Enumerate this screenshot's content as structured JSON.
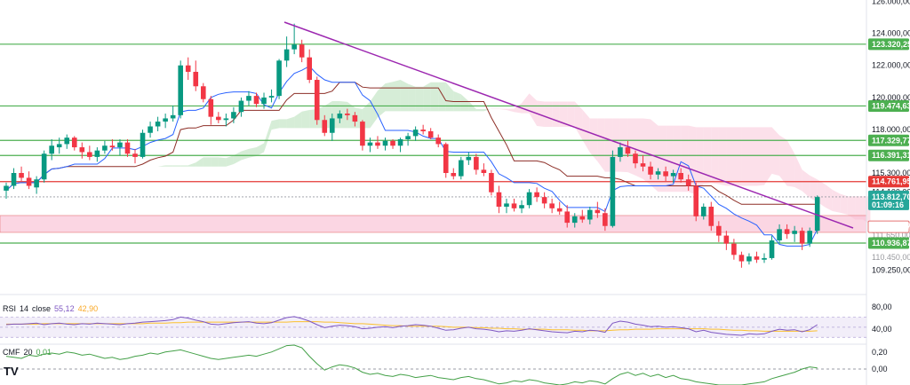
{
  "chart_data": {
    "type": "candlestick",
    "price_axis": {
      "ticks": [
        "126.000,00",
        "124.000,00",
        "122.000,00",
        "120.000,00",
        "118.000,00",
        "115.300,00",
        "114.100,00",
        "109.250,00"
      ],
      "tick_values": [
        126000,
        124000,
        122000,
        120000,
        118000,
        115300,
        114100,
        109250
      ]
    },
    "horizontal_levels": [
      {
        "label": "123.320,25",
        "value": 123320.25,
        "color": "#4caf50"
      },
      {
        "label": "119.474,63",
        "value": 119474.63,
        "color": "#4caf50"
      },
      {
        "label": "117.329,77",
        "value": 117329.77,
        "color": "#4caf50"
      },
      {
        "label": "116.391,31",
        "value": 116391.31,
        "color": "#4caf50"
      },
      {
        "label": "114.761,95",
        "value": 114761.95,
        "color": "#e53935"
      },
      {
        "label": "110.936,87",
        "value": 110936.87,
        "color": "#4caf50"
      }
    ],
    "resistance_zone": {
      "low": 111600,
      "high": 112650
    },
    "current_price": {
      "label": "113.812,70",
      "value": 113812.7,
      "countdown": "01:09:16",
      "color": "#26a69a"
    },
    "zone_tag": {
      "label": "111.949,37",
      "value": 111949.37
    },
    "hidden_tick_labels": [
      "111.650,00",
      "110.450,00"
    ],
    "trendline": {
      "start": [
        0,
        124700
      ],
      "end": [
        107,
        111950
      ],
      "color": "#9c27b0"
    },
    "candles": [
      [
        0,
        114200,
        114700,
        113700,
        114500
      ],
      [
        1,
        114500,
        115600,
        114300,
        115300
      ],
      [
        2,
        115300,
        115700,
        114800,
        115000
      ],
      [
        3,
        115000,
        115400,
        114300,
        114500
      ],
      [
        4,
        114400,
        115100,
        114000,
        114900
      ],
      [
        5,
        114900,
        116700,
        114700,
        116500
      ],
      [
        6,
        116500,
        117400,
        116100,
        117000
      ],
      [
        7,
        116900,
        117500,
        116500,
        117100
      ],
      [
        8,
        117100,
        117700,
        116800,
        117500
      ],
      [
        9,
        117500,
        117600,
        116700,
        116900
      ],
      [
        10,
        116900,
        117200,
        116200,
        116600
      ],
      [
        11,
        116600,
        117000,
        116100,
        116300
      ],
      [
        12,
        116300,
        116900,
        116000,
        116700
      ],
      [
        13,
        116700,
        117300,
        116500,
        117000
      ],
      [
        14,
        117000,
        117400,
        116700,
        116900
      ],
      [
        15,
        116900,
        117400,
        116400,
        117200
      ],
      [
        16,
        117200,
        117400,
        116300,
        116500
      ],
      [
        17,
        116500,
        116800,
        115900,
        116300
      ],
      [
        18,
        116300,
        118000,
        116200,
        117800
      ],
      [
        19,
        117800,
        118500,
        117500,
        118200
      ],
      [
        20,
        118200,
        118800,
        117900,
        118500
      ],
      [
        21,
        118500,
        119000,
        118100,
        118700
      ],
      [
        22,
        118700,
        119500,
        118500,
        118900
      ],
      [
        23,
        118900,
        122300,
        118700,
        122000
      ],
      [
        24,
        122000,
        122500,
        121100,
        121600
      ],
      [
        25,
        121600,
        122300,
        120400,
        120700
      ],
      [
        26,
        120700,
        120900,
        119700,
        119900
      ],
      [
        27,
        119900,
        120100,
        118300,
        118800
      ],
      [
        28,
        118800,
        119100,
        118400,
        118600
      ],
      [
        29,
        118600,
        119000,
        118200,
        118700
      ],
      [
        30,
        118700,
        119400,
        118400,
        119100
      ],
      [
        31,
        119100,
        120000,
        118800,
        119800
      ],
      [
        32,
        119800,
        120400,
        119500,
        120100
      ],
      [
        33,
        120100,
        120300,
        119400,
        119600
      ],
      [
        34,
        119600,
        120300,
        119300,
        120000
      ],
      [
        35,
        120000,
        120500,
        119700,
        120100
      ],
      [
        36,
        120100,
        122400,
        119900,
        122300
      ],
      [
        37,
        122300,
        123800,
        121900,
        123000
      ],
      [
        38,
        123000,
        124600,
        122700,
        123300
      ],
      [
        39,
        123300,
        123600,
        122200,
        122500
      ],
      [
        40,
        122500,
        123000,
        120900,
        121100
      ],
      [
        41,
        121100,
        121300,
        118300,
        118600
      ],
      [
        42,
        118600,
        118900,
        117600,
        117800
      ],
      [
        43,
        117800,
        119000,
        117300,
        118700
      ],
      [
        44,
        118700,
        119200,
        118400,
        119000
      ],
      [
        45,
        119000,
        119300,
        118600,
        118900
      ],
      [
        46,
        118900,
        119100,
        118200,
        118500
      ],
      [
        47,
        118500,
        118600,
        116700,
        117000
      ],
      [
        48,
        117000,
        117500,
        116600,
        117200
      ],
      [
        49,
        117200,
        117600,
        116800,
        117000
      ],
      [
        50,
        117000,
        117500,
        116700,
        117300
      ],
      [
        51,
        117300,
        117400,
        116800,
        117000
      ],
      [
        52,
        117000,
        117500,
        116600,
        117400
      ],
      [
        53,
        117400,
        117800,
        117000,
        117600
      ],
      [
        54,
        117600,
        118200,
        117300,
        118000
      ],
      [
        55,
        118000,
        118300,
        117700,
        117900
      ],
      [
        56,
        117900,
        118100,
        117400,
        117500
      ],
      [
        57,
        117500,
        117700,
        116900,
        117100
      ],
      [
        58,
        117100,
        117200,
        115000,
        115300
      ],
      [
        59,
        115300,
        115600,
        114900,
        115100
      ],
      [
        60,
        115100,
        116300,
        114900,
        116100
      ],
      [
        61,
        116100,
        116600,
        115800,
        116300
      ],
      [
        62,
        116300,
        116500,
        115200,
        115500
      ],
      [
        63,
        115500,
        115900,
        115100,
        115300
      ],
      [
        64,
        115300,
        115500,
        113900,
        114100
      ],
      [
        65,
        114100,
        114500,
        112800,
        113200
      ],
      [
        66,
        113200,
        113700,
        112800,
        113400
      ],
      [
        67,
        113400,
        113700,
        112900,
        113100
      ],
      [
        68,
        113100,
        113600,
        112800,
        113300
      ],
      [
        69,
        113300,
        114300,
        113100,
        114100
      ],
      [
        70,
        114100,
        114400,
        113500,
        113800
      ],
      [
        71,
        113800,
        114100,
        113100,
        113400
      ],
      [
        72,
        113400,
        113700,
        112800,
        113100
      ],
      [
        73,
        113100,
        113500,
        112700,
        112900
      ],
      [
        74,
        112900,
        113300,
        111900,
        112200
      ],
      [
        75,
        112200,
        112800,
        111900,
        112600
      ],
      [
        76,
        112600,
        113000,
        112200,
        112400
      ],
      [
        77,
        112400,
        113200,
        112100,
        113000
      ],
      [
        78,
        113000,
        113500,
        112500,
        112800
      ],
      [
        79,
        112800,
        113100,
        111700,
        112000
      ],
      [
        80,
        112000,
        116700,
        111900,
        116300
      ],
      [
        81,
        116300,
        117200,
        116000,
        116900
      ],
      [
        82,
        116900,
        117300,
        116300,
        116500
      ],
      [
        83,
        116500,
        116700,
        115600,
        115900
      ],
      [
        84,
        115900,
        116400,
        115400,
        115700
      ],
      [
        85,
        115700,
        116000,
        114900,
        115200
      ],
      [
        86,
        115200,
        115600,
        114900,
        115400
      ],
      [
        87,
        115400,
        115700,
        114800,
        115100
      ],
      [
        88,
        115100,
        115500,
        114700,
        115300
      ],
      [
        89,
        115300,
        115600,
        114700,
        114900
      ],
      [
        90,
        114900,
        115200,
        114200,
        114500
      ],
      [
        91,
        114500,
        114700,
        112300,
        112600
      ],
      [
        92,
        112600,
        113400,
        112400,
        113200
      ],
      [
        93,
        113200,
        113500,
        111700,
        112000
      ],
      [
        94,
        112000,
        112300,
        111000,
        111400
      ],
      [
        95,
        111400,
        111700,
        110500,
        110900
      ],
      [
        96,
        110900,
        111200,
        109900,
        110200
      ],
      [
        97,
        110200,
        110400,
        109400,
        109800
      ],
      [
        98,
        109800,
        110300,
        109600,
        110100
      ],
      [
        99,
        110100,
        110400,
        109700,
        109900
      ],
      [
        100,
        109900,
        110300,
        109700,
        110000
      ],
      [
        101,
        110000,
        111400,
        109900,
        111100
      ],
      [
        102,
        111100,
        112100,
        110900,
        111800
      ],
      [
        103,
        111800,
        112100,
        111200,
        111500
      ],
      [
        104,
        111500,
        112000,
        111000,
        111700
      ],
      [
        105,
        111700,
        111900,
        110500,
        110900
      ],
      [
        106,
        110900,
        111900,
        110700,
        111700
      ],
      [
        107,
        111700,
        113900,
        111500,
        113800
      ]
    ],
    "rsi": {
      "label": "RSI",
      "length": "14",
      "source": "close",
      "values": [
        "55,12",
        "42,90"
      ],
      "ticks": [
        "80,00",
        "40,00"
      ],
      "series": [
        55,
        56,
        56,
        57,
        58,
        55,
        57,
        58,
        56,
        55,
        57,
        56,
        58,
        57,
        56,
        55,
        57,
        58,
        60,
        61,
        62,
        63,
        65,
        70,
        68,
        64,
        61,
        56,
        55,
        57,
        59,
        60,
        61,
        58,
        57,
        59,
        64,
        69,
        71,
        67,
        62,
        55,
        49,
        52,
        54,
        53,
        51,
        47,
        48,
        50,
        51,
        49,
        52,
        53,
        55,
        54,
        52,
        48,
        44,
        45,
        48,
        50,
        47,
        46,
        44,
        41,
        43,
        42,
        44,
        47,
        45,
        43,
        41,
        40,
        39,
        42,
        41,
        44,
        43,
        40,
        58,
        62,
        60,
        56,
        54,
        51,
        52,
        50,
        51,
        49,
        47,
        41,
        44,
        40,
        38,
        36,
        35,
        34,
        37,
        36,
        37,
        42,
        46,
        44,
        45,
        41,
        45,
        55
      ],
      "ma": [
        56,
        56,
        56,
        56,
        56,
        57,
        57,
        57,
        57,
        57,
        57,
        57,
        57,
        57,
        57,
        57,
        57,
        57,
        57,
        58,
        58,
        58,
        59,
        59,
        60,
        60,
        60,
        60,
        60,
        60,
        60,
        60,
        60,
        60,
        60,
        60,
        60,
        60,
        61,
        61,
        61,
        61,
        60,
        60,
        59,
        58,
        57,
        57,
        56,
        55,
        54,
        53,
        53,
        52,
        52,
        52,
        52,
        52,
        51,
        50,
        50,
        50,
        49,
        49,
        48,
        48,
        47,
        47,
        46,
        46,
        46,
        46,
        45,
        45,
        45,
        44,
        44,
        43,
        43,
        43,
        44,
        45,
        45,
        46,
        46,
        46,
        47,
        47,
        47,
        47,
        47,
        47,
        47,
        46,
        46,
        45,
        44,
        44,
        43,
        43,
        42,
        42,
        42,
        42,
        42,
        42,
        42,
        43
      ]
    },
    "cmf": {
      "label": "CMF",
      "length": "20",
      "value": "0,01",
      "ticks": [
        "0,20",
        "0,00"
      ],
      "series": [
        0.12,
        0.11,
        0.1,
        0.13,
        0.12,
        0.14,
        0.15,
        0.14,
        0.16,
        0.15,
        0.13,
        0.14,
        0.12,
        0.1,
        0.11,
        0.09,
        0.1,
        0.12,
        0.13,
        0.15,
        0.14,
        0.16,
        0.17,
        0.18,
        0.16,
        0.14,
        0.12,
        0.1,
        0.09,
        0.1,
        0.11,
        0.12,
        0.13,
        0.12,
        0.14,
        0.16,
        0.19,
        0.22,
        0.23,
        0.2,
        0.12,
        0.05,
        -0.01,
        0.02,
        0.04,
        0.03,
        0.01,
        -0.03,
        -0.05,
        -0.04,
        -0.06,
        -0.07,
        -0.05,
        -0.06,
        -0.08,
        -0.07,
        -0.06,
        -0.08,
        -0.09,
        -0.1,
        -0.08,
        -0.07,
        -0.09,
        -0.1,
        -0.12,
        -0.14,
        -0.13,
        -0.11,
        -0.12,
        -0.1,
        -0.11,
        -0.13,
        -0.14,
        -0.15,
        -0.14,
        -0.12,
        -0.13,
        -0.11,
        -0.12,
        -0.14,
        -0.09,
        -0.05,
        -0.03,
        -0.06,
        -0.04,
        -0.07,
        -0.05,
        -0.08,
        -0.06,
        -0.09,
        -0.1,
        -0.12,
        -0.13,
        -0.14,
        -0.15,
        -0.16,
        -0.17,
        -0.15,
        -0.14,
        -0.13,
        -0.12,
        -0.09,
        -0.07,
        -0.05,
        -0.03,
        0.0,
        0.02,
        0.01
      ]
    },
    "colors": {
      "up": "#089981",
      "down": "#f23645",
      "kijun": "#8d2f27",
      "tenkan": "#2962ff",
      "cloud_bull": "#a5d6a7",
      "cloud_bear": "#f8bbd0",
      "rsi_line": "#7e57c2",
      "rsi_ma": "#fbc02d",
      "cmf_line": "#43a047"
    }
  },
  "branding": {
    "logo": "TV"
  }
}
